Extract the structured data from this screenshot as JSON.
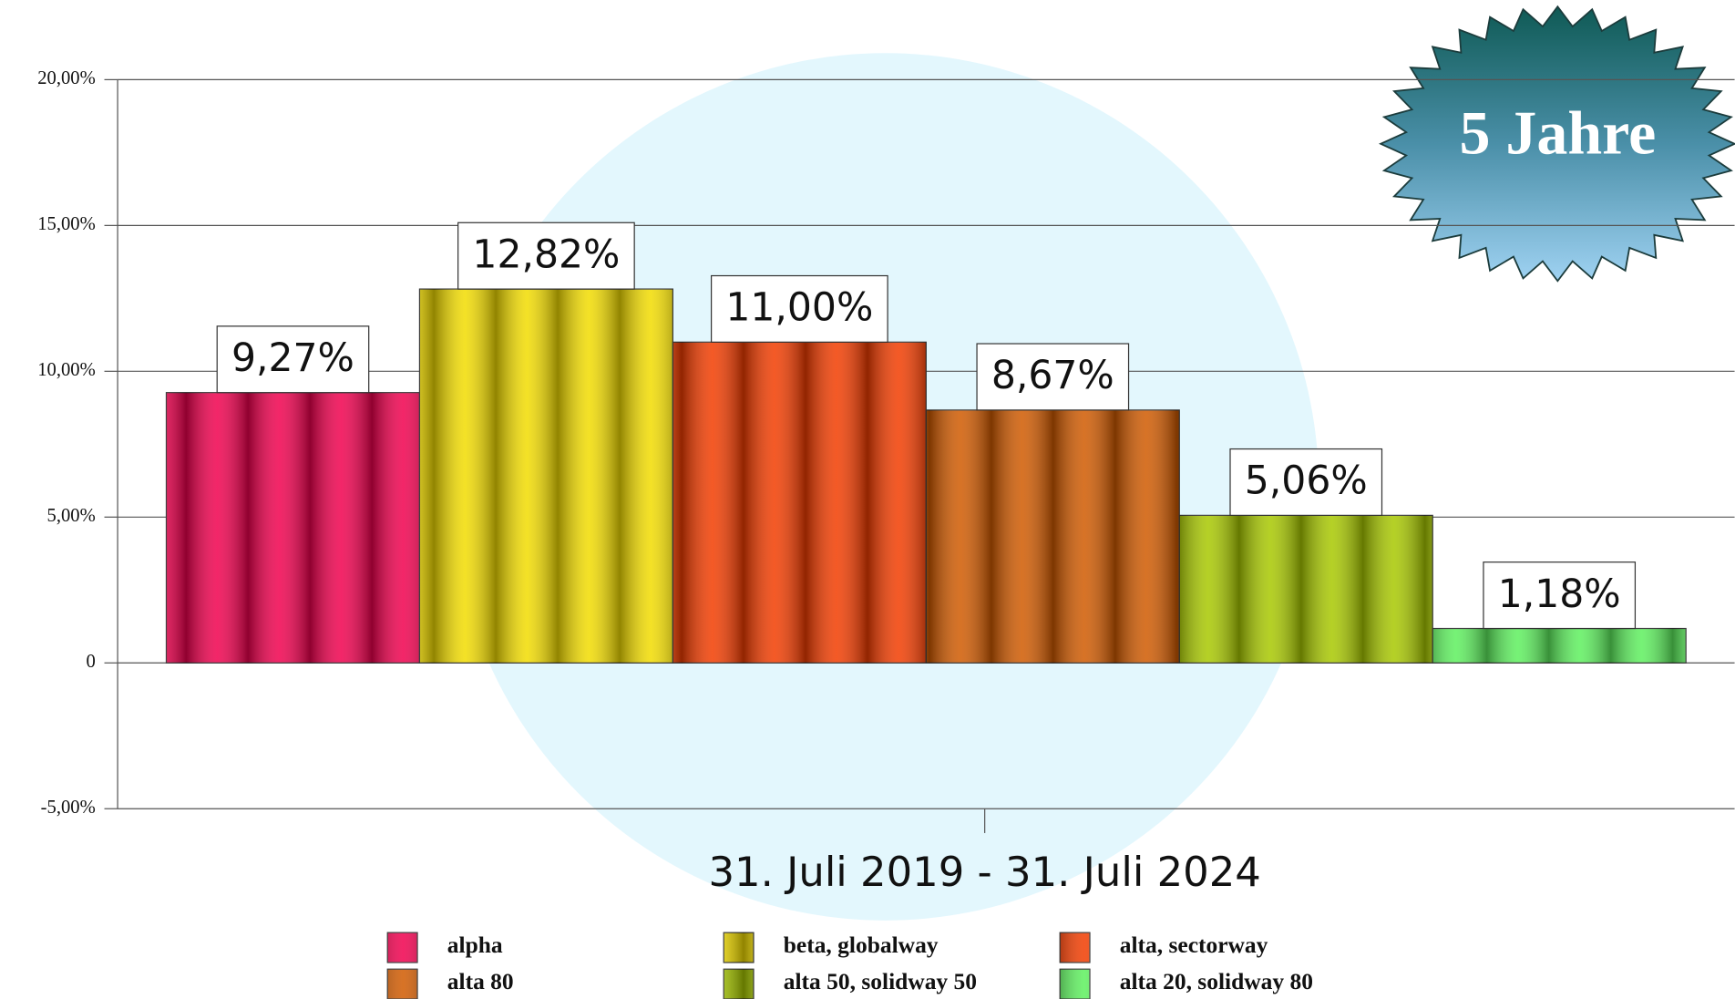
{
  "chart_data": {
    "type": "bar",
    "badge": "5 Jahre",
    "categories": [
      "31. Juli 2019 - 31. Juli 2024"
    ],
    "series": [
      {
        "name": "alpha",
        "color": "#f0004e",
        "values": [
          9.27
        ],
        "value_labels": [
          "9,27%"
        ]
      },
      {
        "name": "beta, globalway",
        "color": "#f2dc00",
        "values": [
          12.82
        ],
        "value_labels": [
          "12,82%"
        ]
      },
      {
        "name": "alta, sectorway",
        "color": "#f23c00",
        "values": [
          11.0
        ],
        "value_labels": [
          "11,00%"
        ]
      },
      {
        "name": "alta 80",
        "color": "#d05a00",
        "values": [
          8.67
        ],
        "value_labels": [
          "8,67%"
        ]
      },
      {
        "name": "alta 50, solidway 50",
        "color": "#a8c800",
        "values": [
          5.06
        ],
        "value_labels": [
          "5,06%"
        ]
      },
      {
        "name": "alta 20, solidway 80",
        "color": "#5ef05e",
        "values": [
          1.18
        ],
        "value_labels": [
          "1,18%"
        ]
      }
    ],
    "ylim": [
      -5,
      20
    ],
    "yticks": [
      {
        "value": -5,
        "label": "-5,00%"
      },
      0,
      {
        "value": 5,
        "label": "5,00%"
      },
      {
        "value": 10,
        "label": "10,00%"
      },
      {
        "value": 15,
        "label": "15,00%"
      },
      {
        "value": 20,
        "label": "20,00%"
      }
    ],
    "grid": true,
    "legend": "bottom"
  }
}
